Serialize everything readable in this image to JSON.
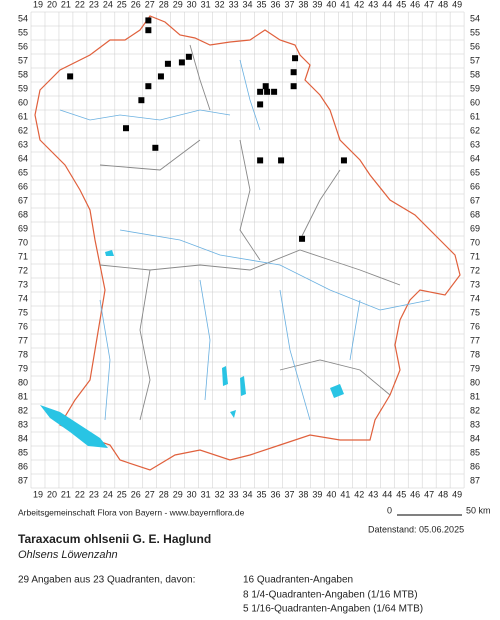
{
  "columns": [
    19,
    20,
    21,
    22,
    23,
    24,
    25,
    26,
    27,
    28,
    29,
    30,
    31,
    32,
    33,
    34,
    35,
    36,
    37,
    38,
    39,
    40,
    41,
    42,
    43,
    44,
    45,
    46,
    47,
    48,
    49
  ],
  "rows": [
    54,
    55,
    56,
    57,
    58,
    59,
    60,
    61,
    62,
    63,
    64,
    65,
    66,
    67,
    68,
    69,
    70,
    71,
    72,
    73,
    74,
    75,
    76,
    77,
    78,
    79,
    80,
    81,
    82,
    83,
    84,
    85,
    86,
    87
  ],
  "occurrences": [
    [
      26.9,
      54.1
    ],
    [
      26.9,
      54.8
    ],
    [
      21.3,
      58.1
    ],
    [
      29.8,
      56.7
    ],
    [
      29.3,
      57.1
    ],
    [
      28.3,
      57.2
    ],
    [
      27.8,
      58.1
    ],
    [
      26.9,
      58.8
    ],
    [
      26.4,
      59.8
    ],
    [
      25.3,
      61.8
    ],
    [
      27.4,
      63.2
    ],
    [
      37.4,
      56.8
    ],
    [
      37.3,
      57.8
    ],
    [
      37.3,
      58.8
    ],
    [
      35.3,
      58.8
    ],
    [
      34.9,
      59.2
    ],
    [
      35.4,
      59.2
    ],
    [
      35.9,
      59.2
    ],
    [
      34.9,
      60.1
    ],
    [
      34.9,
      64.1
    ],
    [
      36.4,
      64.1
    ],
    [
      40.9,
      64.1
    ],
    [
      37.9,
      69.7
    ]
  ],
  "footer": {
    "credit": "Arbeitsgemeinschaft Flora von Bayern - www.bayernflora.de",
    "scale_start": "0",
    "scale_end": "50 km",
    "date": "Datenstand: 05.06.2025"
  },
  "species": {
    "name": "Taraxacum ohlsenii G. E. Haglund",
    "common_name": "Ohlsens Löwenzahn"
  },
  "summary": {
    "total": "29 Angaben aus 23 Quadranten, davon:",
    "lines": [
      "16 Quadranten-Angaben",
      "8 1/4-Quadranten-Angaben (1/16 MTB)",
      "5 1/16-Quadranten-Angaben (1/64 MTB)"
    ]
  }
}
